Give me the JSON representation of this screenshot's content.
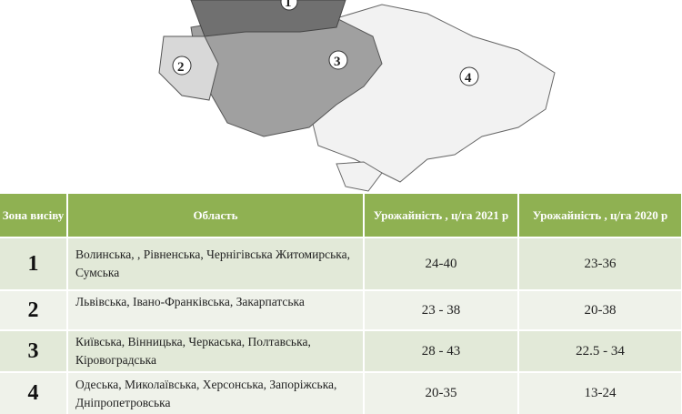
{
  "map": {
    "zone_labels": [
      "1",
      "2",
      "3",
      "4"
    ]
  },
  "table": {
    "headers": [
      "Зона висіву",
      "Область",
      "Урожайність , ц/га 2021 р",
      "Урожайність , ц/га 2020 р"
    ],
    "rows": [
      {
        "zone": "1",
        "regions": "Волинська, , Рівненська, Чернігівська Житомирська, Сумська",
        "y2021": "24-40",
        "y2020": "23-36"
      },
      {
        "zone": "2",
        "regions": "Львівська, Івано-Франківська, Закарпатська",
        "y2021": "23 - 38",
        "y2020": "20-38"
      },
      {
        "zone": "3",
        "regions": "Київська, Вінницька, Черкаська, Полтавська, Кіровоградська",
        "y2021": "28 - 43",
        "y2020": "22.5 - 34"
      },
      {
        "zone": "4",
        "regions": "Одеська, Миколаївська, Херсонська, Запоріжська, Дніпропетровська",
        "y2021": "20-35",
        "y2020": "13-24"
      }
    ],
    "colors": {
      "header": "#8fb152",
      "row_a": "#e2e9d8",
      "row_b": "#eff2ea"
    }
  }
}
